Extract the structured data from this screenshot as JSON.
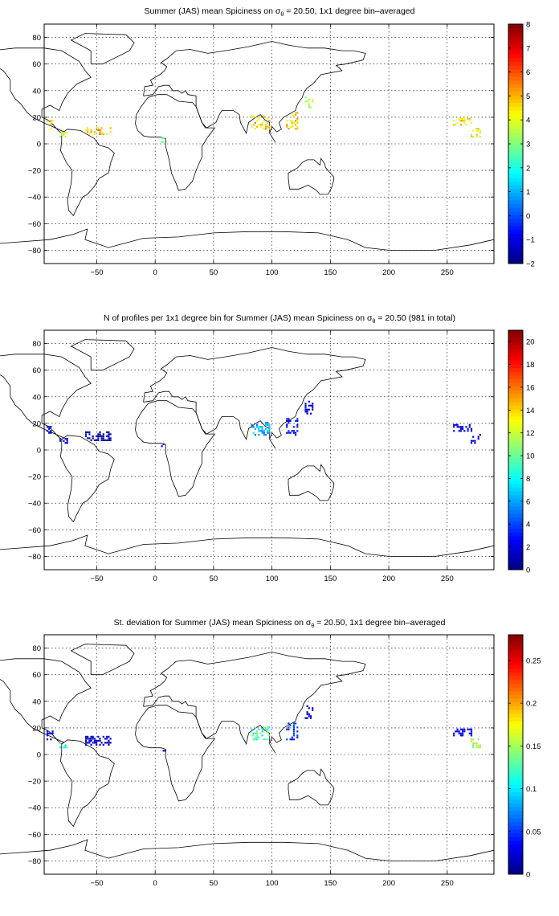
{
  "chart_data": [
    {
      "type": "heatmap",
      "title": {
        "pre": "Summer (JAS) mean Spiciness on ",
        "sym": "σ",
        "sub": "θ",
        "post": " = 20.50, 1x1 degree bin–averaged"
      },
      "xlim": [
        -95,
        290
      ],
      "ylim": [
        -90,
        90
      ],
      "xticks": [
        -50,
        0,
        50,
        100,
        150,
        200,
        250
      ],
      "yticks": [
        80,
        60,
        40,
        20,
        0,
        -20,
        -40,
        -60,
        -80
      ],
      "grid": true,
      "colorbar": {
        "min": -2,
        "max": 8,
        "ticks": [
          8,
          7,
          6,
          5,
          4,
          3,
          2,
          1,
          0,
          -1,
          -2
        ]
      },
      "clusters": [
        {
          "lon": [
            82,
            98
          ],
          "lat": [
            12,
            22
          ],
          "value": 4.5
        },
        {
          "lon": [
            112,
            122
          ],
          "lat": [
            12,
            24
          ],
          "value": 4.6
        },
        {
          "lon": [
            128,
            134
          ],
          "lat": [
            28,
            38
          ],
          "value": 3.5
        },
        {
          "lon": [
            -93,
            -88
          ],
          "lat": [
            12,
            18
          ],
          "value": 4.3
        },
        {
          "lon": [
            -82,
            -76
          ],
          "lat": [
            6,
            10
          ],
          "value": 3.6
        },
        {
          "lon": [
            -60,
            -38
          ],
          "lat": [
            8,
            14
          ],
          "value": 4.7
        },
        {
          "lon": [
            5,
            9
          ],
          "lat": [
            2,
            6
          ],
          "value": 3.0
        },
        {
          "lon": [
            255,
            270
          ],
          "lat": [
            15,
            20
          ],
          "value": 4.6
        },
        {
          "lon": [
            270,
            278
          ],
          "lat": [
            6,
            12
          ],
          "value": 4.0
        }
      ]
    },
    {
      "type": "heatmap",
      "title": {
        "pre": "N of profiles per 1x1 degree bin for Summer (JAS) mean Spiciness on ",
        "sym": "σ",
        "sub": "θ",
        "post": " = 20.50 (981 in total)"
      },
      "xlim": [
        -95,
        290
      ],
      "ylim": [
        -90,
        90
      ],
      "xticks": [
        -50,
        0,
        50,
        100,
        150,
        200,
        250
      ],
      "yticks": [
        80,
        60,
        40,
        20,
        0,
        -20,
        -40,
        -60,
        -80
      ],
      "grid": true,
      "colorbar": {
        "min": 0,
        "max": 21,
        "ticks": [
          20,
          18,
          16,
          14,
          12,
          10,
          8,
          6,
          4,
          2,
          0
        ]
      },
      "clusters": [
        {
          "lon": [
            82,
            98
          ],
          "lat": [
            12,
            22
          ],
          "value": 6
        },
        {
          "lon": [
            112,
            122
          ],
          "lat": [
            12,
            24
          ],
          "value": 3
        },
        {
          "lon": [
            128,
            134
          ],
          "lat": [
            28,
            38
          ],
          "value": 2
        },
        {
          "lon": [
            -93,
            -88
          ],
          "lat": [
            12,
            18
          ],
          "value": 2
        },
        {
          "lon": [
            -82,
            -76
          ],
          "lat": [
            6,
            10
          ],
          "value": 2
        },
        {
          "lon": [
            -60,
            -38
          ],
          "lat": [
            8,
            14
          ],
          "value": 1
        },
        {
          "lon": [
            5,
            9
          ],
          "lat": [
            2,
            6
          ],
          "value": 2
        },
        {
          "lon": [
            255,
            270
          ],
          "lat": [
            15,
            20
          ],
          "value": 2
        },
        {
          "lon": [
            270,
            278
          ],
          "lat": [
            6,
            12
          ],
          "value": 2
        }
      ]
    },
    {
      "type": "heatmap",
      "title": {
        "pre": "St. deviation for Summer (JAS) mean Spiciness on ",
        "sym": "σ",
        "sub": "θ",
        "post": " = 20.50, 1x1 degree bin–averaged"
      },
      "xlim": [
        -95,
        290
      ],
      "ylim": [
        -90,
        90
      ],
      "xticks": [
        -50,
        0,
        50,
        100,
        150,
        200,
        250
      ],
      "yticks": [
        80,
        60,
        40,
        20,
        0,
        -20,
        -40,
        -60,
        -80
      ],
      "grid": true,
      "colorbar": {
        "min": 0,
        "max": 0.28,
        "ticks": [
          0.25,
          0.2,
          0.15,
          0.1,
          0.05,
          0
        ]
      },
      "clusters": [
        {
          "lon": [
            82,
            98
          ],
          "lat": [
            12,
            22
          ],
          "value": 0.12
        },
        {
          "lon": [
            112,
            122
          ],
          "lat": [
            12,
            24
          ],
          "value": 0.05
        },
        {
          "lon": [
            128,
            134
          ],
          "lat": [
            28,
            38
          ],
          "value": 0.02
        },
        {
          "lon": [
            -93,
            -88
          ],
          "lat": [
            12,
            18
          ],
          "value": 0.03
        },
        {
          "lon": [
            -82,
            -76
          ],
          "lat": [
            6,
            10
          ],
          "value": 0.12
        },
        {
          "lon": [
            -60,
            -38
          ],
          "lat": [
            8,
            14
          ],
          "value": 0.02
        },
        {
          "lon": [
            5,
            9
          ],
          "lat": [
            2,
            6
          ],
          "value": 0.02
        },
        {
          "lon": [
            255,
            270
          ],
          "lat": [
            15,
            20
          ],
          "value": 0.03
        },
        {
          "lon": [
            270,
            278
          ],
          "lat": [
            6,
            12
          ],
          "value": 0.15
        }
      ]
    }
  ]
}
